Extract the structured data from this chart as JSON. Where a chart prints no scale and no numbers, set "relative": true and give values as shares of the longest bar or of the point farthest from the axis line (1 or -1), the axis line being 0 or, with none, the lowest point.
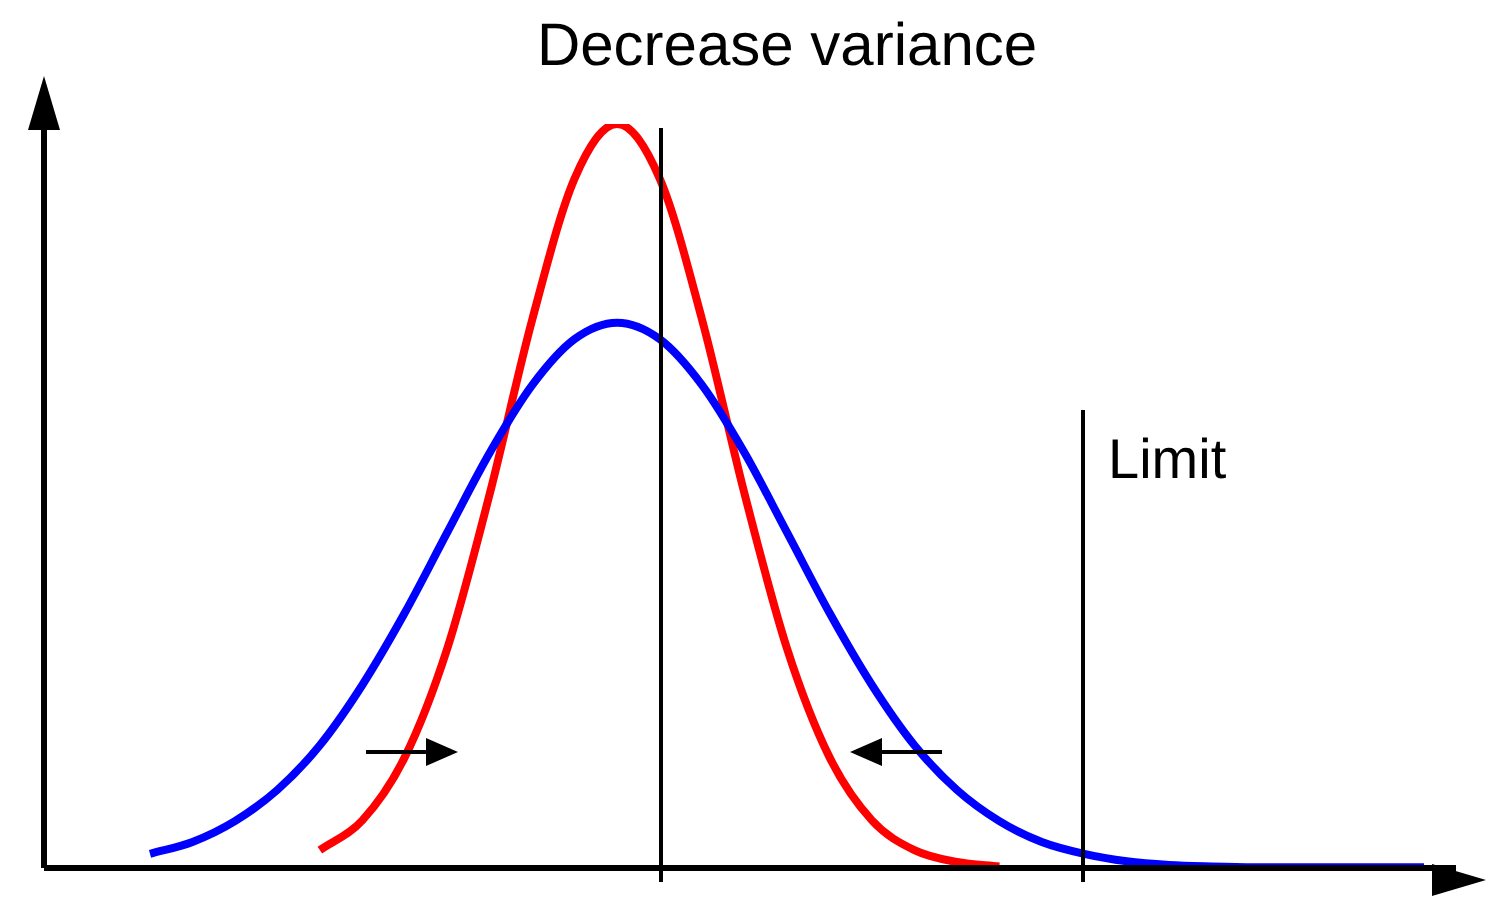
{
  "chart_data": {
    "type": "line",
    "title": "Decrease variance",
    "relative": true,
    "categories": [
      null,
      null,
      null,
      null,
      null,
      null,
      null,
      null,
      null,
      null,
      null,
      null,
      null,
      null,
      null,
      null,
      null,
      null,
      null,
      null,
      null,
      null,
      null,
      null,
      null,
      null,
      null,
      null,
      null,
      null,
      null
    ],
    "series": [
      {
        "color": "#0000ff",
        "values": [
          0.019,
          0.035,
          0.063,
          0.105,
          0.165,
          0.246,
          0.343,
          0.451,
          0.558,
          0.649,
          0.711,
          0.733,
          0.711,
          0.649,
          0.558,
          0.451,
          0.343,
          0.246,
          0.165,
          0.105,
          0.063,
          0.035,
          0.019,
          0.009,
          0.004,
          0.002,
          0.001,
          0.001,
          0.001,
          0.001,
          0.001
        ]
      },
      {
        "color": "#ff0000",
        "values": [
          null,
          null,
          null,
          null,
          0.024,
          0.064,
          0.149,
          0.295,
          0.503,
          0.737,
          0.927,
          1,
          0.927,
          0.737,
          0.503,
          0.295,
          0.149,
          0.064,
          0.024,
          0.008,
          0.002,
          null,
          null,
          null,
          null,
          null,
          null,
          null,
          null,
          null,
          null
        ]
      }
    ],
    "annotations": [
      "Limit"
    ],
    "grid": false,
    "legend": false,
    "marker": "none",
    "line_style": "solid"
  }
}
